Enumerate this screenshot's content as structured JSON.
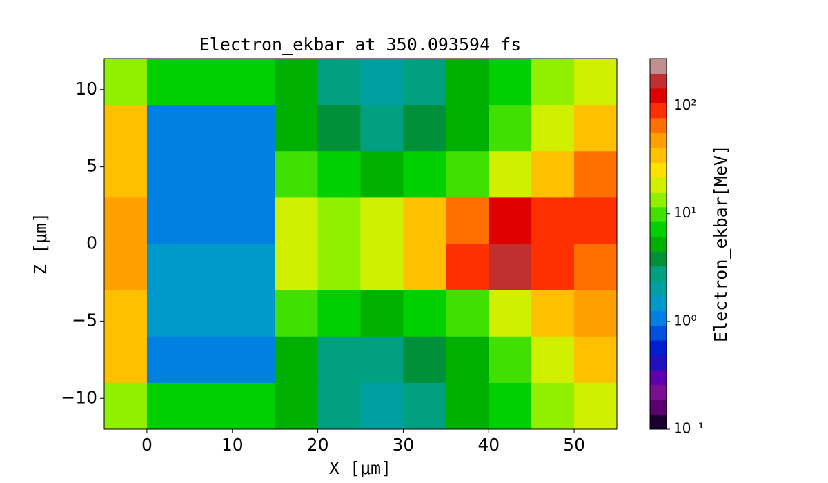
{
  "chart_data": {
    "type": "heatmap",
    "title": "Electron_ekbar at 350.093594 fs",
    "x_label": "X  [μm]",
    "y_label": "Z  [μm]",
    "colorbar_label": "Electron_ekbar[MeV]",
    "x": [
      -2.5,
      2.5,
      7.5,
      12.5,
      17.5,
      22.5,
      27.5,
      32.5,
      37.5,
      42.5,
      47.5,
      52.5
    ],
    "y": [
      10.5,
      7.5,
      4.5,
      1.5,
      -1.5,
      -4.5,
      -7.5,
      -10.5
    ],
    "values": [
      [
        15,
        8,
        8,
        8,
        5,
        3,
        2,
        3,
        5,
        8,
        15,
        20
      ],
      [
        30,
        1,
        1,
        1,
        5,
        4,
        3,
        4,
        6,
        10,
        20,
        30
      ],
      [
        40,
        1,
        1,
        1,
        10,
        8,
        6,
        8,
        10,
        20,
        40,
        60
      ],
      [
        50,
        1.2,
        1.2,
        1.2,
        20,
        15,
        20,
        30,
        60,
        120,
        100,
        80
      ],
      [
        50,
        1.5,
        1.5,
        1.5,
        20,
        15,
        20,
        40,
        80,
        150,
        100,
        60
      ],
      [
        40,
        1.5,
        1.5,
        1.5,
        10,
        8,
        6,
        8,
        10,
        20,
        40,
        50
      ],
      [
        30,
        1,
        1,
        1,
        5,
        3,
        3,
        4,
        6,
        10,
        20,
        30
      ],
      [
        15,
        8,
        8,
        8,
        5,
        3,
        2,
        3,
        5,
        8,
        15,
        20
      ]
    ],
    "xlim": [
      -5,
      55
    ],
    "ylim": [
      -12,
      12
    ],
    "xticks": [
      0,
      10,
      20,
      30,
      40,
      50
    ],
    "yticks": [
      {
        "value": -10,
        "label": "−10"
      },
      {
        "value": -5,
        "label": "−5"
      },
      0,
      5,
      10
    ],
    "clim": [
      0.1,
      275
    ],
    "log_colorbar": true,
    "cticks": [
      {
        "value": 0.1,
        "label": "10⁻¹"
      },
      {
        "value": 1,
        "label": "10⁰"
      },
      {
        "value": 10,
        "label": "10¹"
      },
      {
        "value": 100,
        "label": "10²"
      }
    ],
    "colormap": [
      "#1a0030",
      "#5a0070",
      "#7a1090",
      "#6000b0",
      "#2010c0",
      "#0020d0",
      "#0050e0",
      "#0080e0",
      "#0099cc",
      "#00a0a0",
      "#00a080",
      "#00903a",
      "#00b000",
      "#00d000",
      "#40e000",
      "#90f000",
      "#d0f000",
      "#ffe000",
      "#ffc000",
      "#ffa000",
      "#ff7000",
      "#ff3000",
      "#e00000",
      "#c03030",
      "#c09090"
    ]
  }
}
